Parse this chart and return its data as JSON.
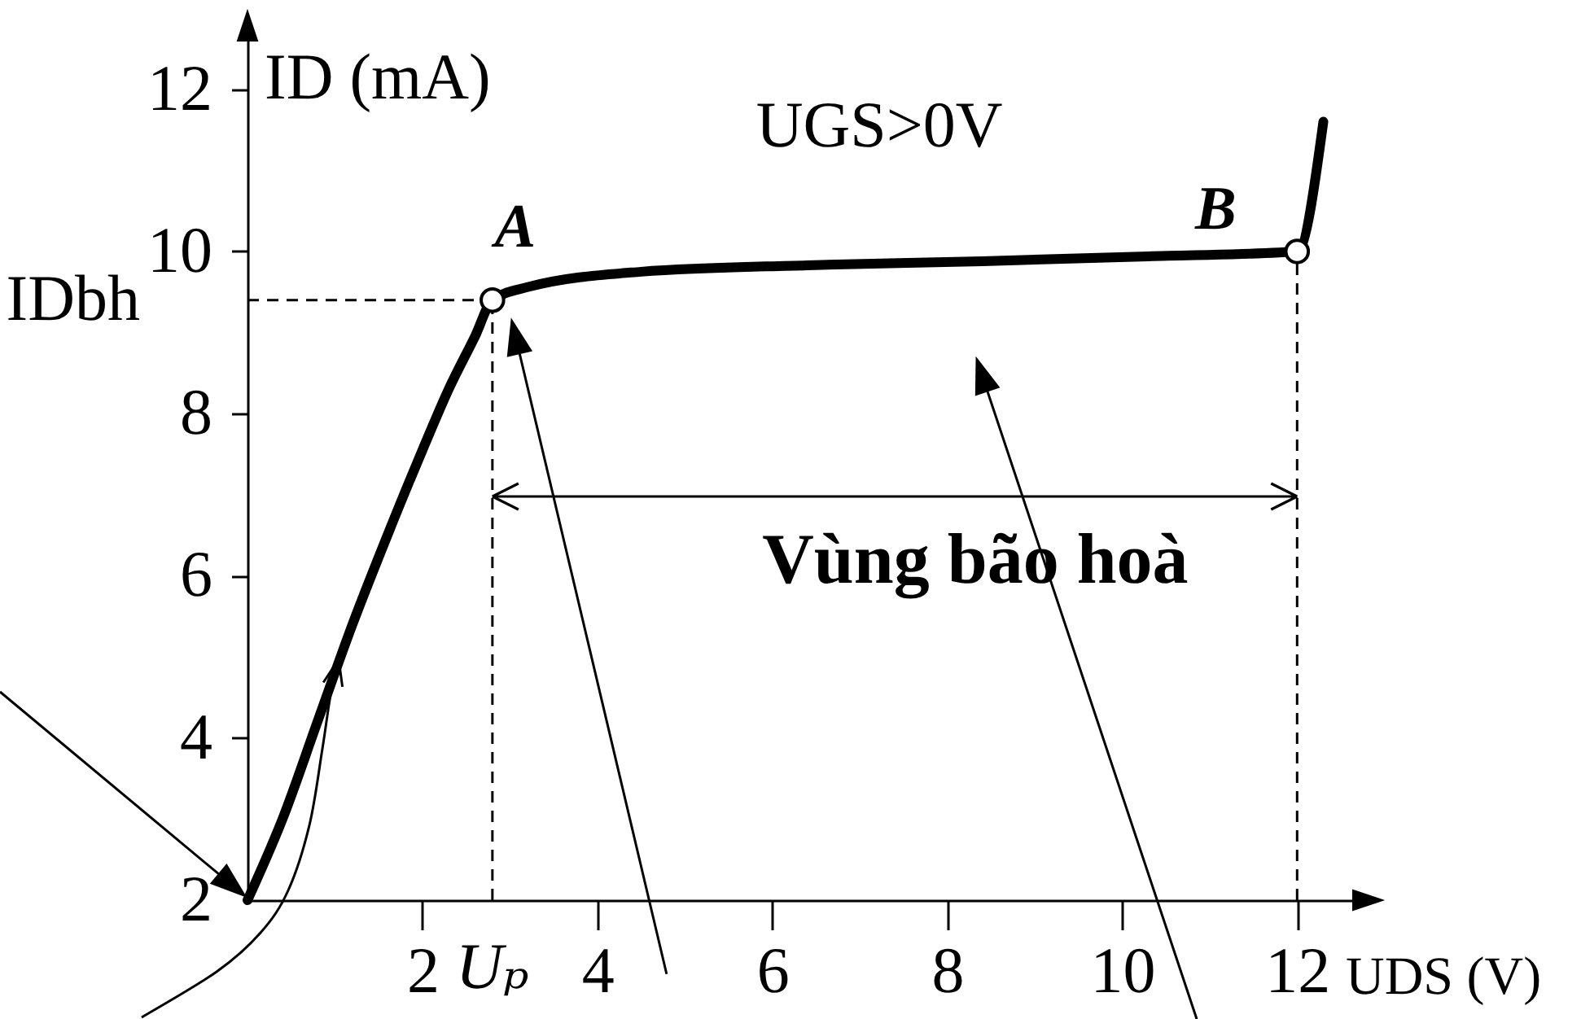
{
  "chart_data": {
    "type": "line",
    "xlabel": "UDS (V)",
    "ylabel": "ID (mA)",
    "xlim": [
      0,
      12.9
    ],
    "ylim": [
      2,
      12.8
    ],
    "xticks": [
      2,
      4,
      6,
      8,
      10,
      12
    ],
    "yticks": [
      2,
      4,
      6,
      8,
      10,
      12
    ],
    "grid": false,
    "line_style": "solid",
    "series": [
      {
        "name": "UGS>0V",
        "color": "#000000",
        "marker": "none",
        "x": [
          0,
          0.4,
          0.8,
          1.2,
          1.6,
          2.0,
          2.3,
          2.6,
          2.8,
          3.2,
          4.5,
          6.4,
          8.4,
          10.3,
          12.0,
          12.3
        ],
        "values": [
          2,
          3.0,
          4.2,
          5.4,
          6.5,
          7.55,
          8.3,
          8.95,
          9.4,
          9.56,
          9.75,
          9.83,
          9.88,
          9.94,
          10.0,
          11.6
        ]
      },
      {
        "type": "scatter",
        "color": "#000000",
        "marker": "circle",
        "x": [
          2.8,
          12.0
        ],
        "values": [
          9.4,
          10.0
        ]
      }
    ],
    "ref_lines": [
      {
        "axis": "x",
        "value": 2.8,
        "label": "Uₚ",
        "color": "#000000",
        "line_style": "dashed"
      },
      {
        "axis": "y",
        "value": 9.4,
        "label": "IDbh",
        "color": "#000000",
        "line_style": "dashed"
      },
      {
        "axis": "x",
        "value": 12,
        "color": "#000000",
        "line_style": "dashed"
      }
    ],
    "annotations": [
      {
        "text": "A",
        "x": 2.8,
        "y": 9.4
      },
      {
        "text": "B",
        "x": 12.0,
        "y": 10.0
      },
      "Vùng bão hoà"
    ]
  }
}
